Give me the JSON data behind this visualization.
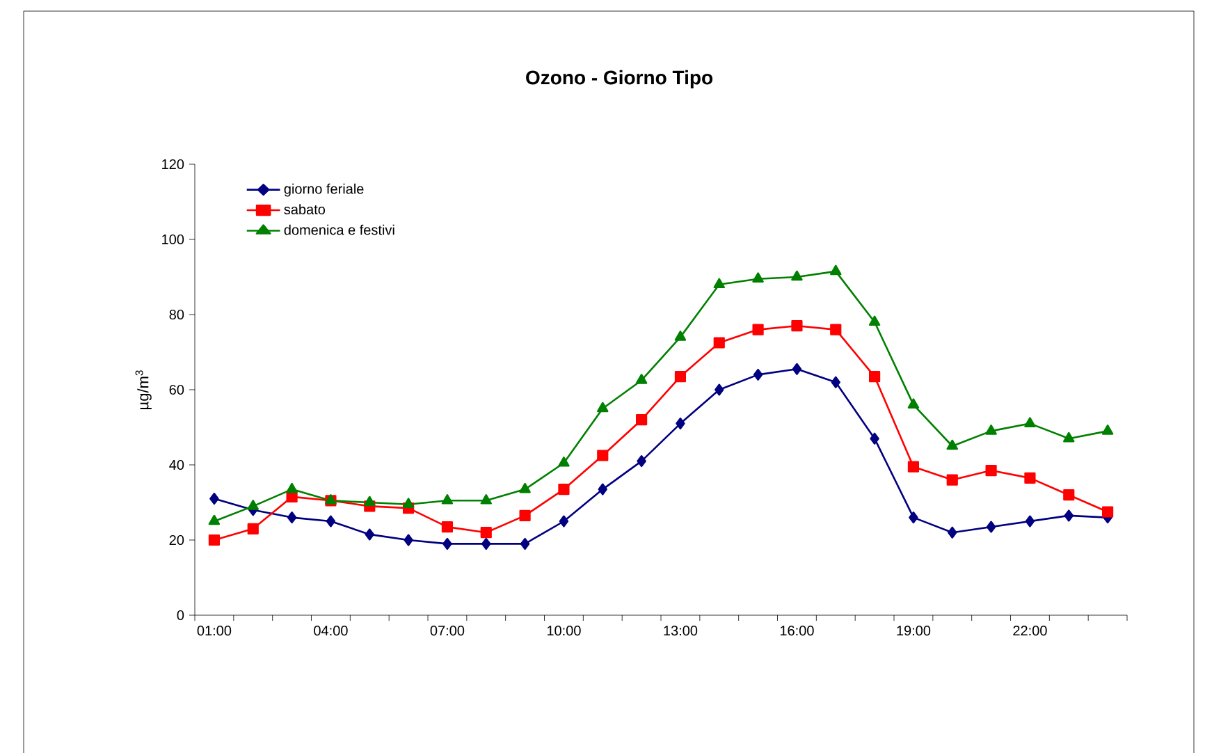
{
  "chart_data": {
    "type": "line",
    "title": "Ozono -  Giorno Tipo",
    "ylabel": "µg/m$^{3}$",
    "categories": [
      "01:00",
      null,
      null,
      "04:00",
      null,
      null,
      "07:00",
      null,
      null,
      "10:00",
      null,
      null,
      "13:00",
      null,
      null,
      "16:00",
      null,
      null,
      "19:00",
      null,
      null,
      "22:00",
      null,
      null
    ],
    "ylim": [
      0,
      120
    ],
    "yticks": [
      0,
      20,
      40,
      60,
      80,
      100,
      120
    ],
    "legend": "top left",
    "grid": false,
    "line_style": "solid",
    "series": [
      {
        "name": "giorno feriale",
        "color": "#000080",
        "marker": "diamond",
        "values": [
          31,
          28,
          26,
          25,
          21.5,
          20,
          19,
          19,
          19,
          25,
          33.5,
          41,
          51,
          60,
          64,
          65.5,
          62,
          47,
          26,
          22,
          23.5,
          25,
          26.5,
          26
        ]
      },
      {
        "name": "sabato",
        "color": "#ff0000",
        "marker": "square",
        "values": [
          20,
          23,
          31.5,
          30.5,
          29,
          28.5,
          23.5,
          22,
          26.5,
          33.5,
          42.5,
          52,
          63.5,
          72.5,
          76,
          77,
          76,
          63.5,
          39.5,
          36,
          38.5,
          36.5,
          32,
          27.5
        ]
      },
      {
        "name": "domenica e festivi",
        "color": "#008000",
        "marker": "triangle",
        "values": [
          25,
          29,
          33.5,
          30.5,
          30,
          29.5,
          30.5,
          30.5,
          33.5,
          40.5,
          55,
          62.5,
          74,
          88,
          89.5,
          90,
          91.5,
          78,
          56,
          45,
          49,
          51,
          47,
          49
        ]
      }
    ]
  }
}
